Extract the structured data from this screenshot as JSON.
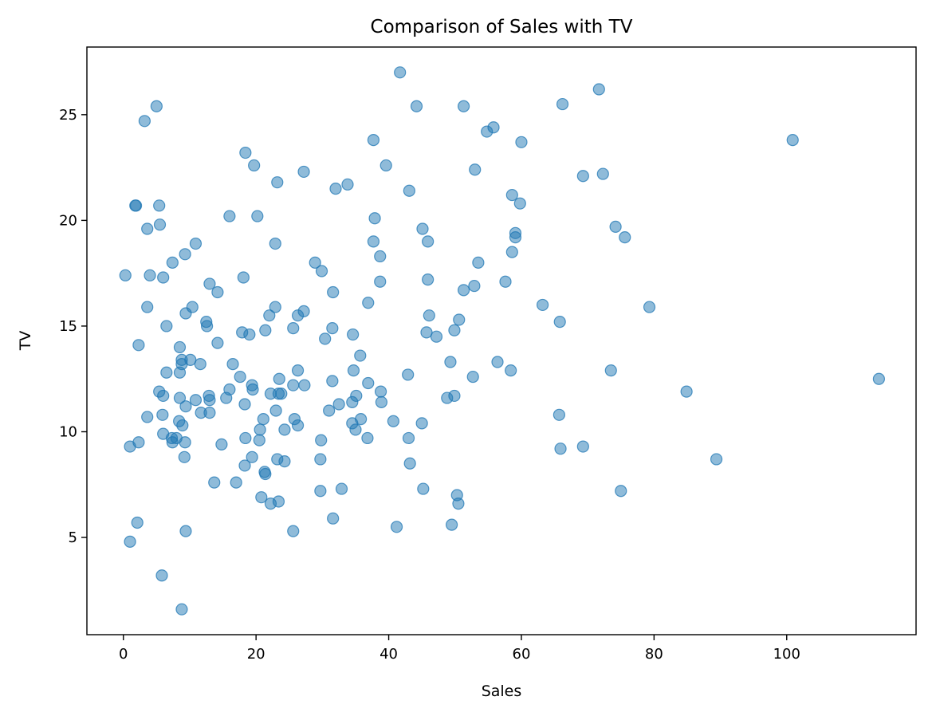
{
  "chart_data": {
    "type": "scatter",
    "title": "Comparison of Sales with TV",
    "xlabel": "Sales",
    "ylabel": "TV",
    "xlim": [
      -5.5,
      119.5
    ],
    "ylim": [
      0.4,
      28.2
    ],
    "xticks": [
      0,
      20,
      40,
      60,
      80,
      100
    ],
    "xtick_labels": [
      "0",
      "20",
      "40",
      "60",
      "80",
      "100"
    ],
    "yticks": [
      5,
      10,
      15,
      20,
      25
    ],
    "ytick_labels": [
      "5",
      "10",
      "15",
      "20",
      "25"
    ],
    "grid": false,
    "marker_color": "#1f77b4",
    "marker_alpha": 0.5,
    "points": [
      [
        41.7,
        27.0
      ],
      [
        71.7,
        26.2
      ],
      [
        5.0,
        25.4
      ],
      [
        44.2,
        25.4
      ],
      [
        51.3,
        25.4
      ],
      [
        66.2,
        25.5
      ],
      [
        3.2,
        24.7
      ],
      [
        55.8,
        24.4
      ],
      [
        54.8,
        24.2
      ],
      [
        60.0,
        23.7
      ],
      [
        37.7,
        23.8
      ],
      [
        100.9,
        23.8
      ],
      [
        18.4,
        23.2
      ],
      [
        19.7,
        22.6
      ],
      [
        39.6,
        22.6
      ],
      [
        53.0,
        22.4
      ],
      [
        27.2,
        22.3
      ],
      [
        69.3,
        22.1
      ],
      [
        72.3,
        22.2
      ],
      [
        23.2,
        21.8
      ],
      [
        32.0,
        21.5
      ],
      [
        33.8,
        21.7
      ],
      [
        43.1,
        21.4
      ],
      [
        58.6,
        21.2
      ],
      [
        1.8,
        20.7
      ],
      [
        1.9,
        20.7
      ],
      [
        5.4,
        20.7
      ],
      [
        59.8,
        20.8
      ],
      [
        16.0,
        20.2
      ],
      [
        20.2,
        20.2
      ],
      [
        37.9,
        20.1
      ],
      [
        5.5,
        19.8
      ],
      [
        3.6,
        19.6
      ],
      [
        45.1,
        19.6
      ],
      [
        74.2,
        19.7
      ],
      [
        59.1,
        19.4
      ],
      [
        59.1,
        19.2
      ],
      [
        75.6,
        19.2
      ],
      [
        10.9,
        18.9
      ],
      [
        22.9,
        18.9
      ],
      [
        37.7,
        19.0
      ],
      [
        45.9,
        19.0
      ],
      [
        9.3,
        18.4
      ],
      [
        38.7,
        18.3
      ],
      [
        58.6,
        18.5
      ],
      [
        7.4,
        18.0
      ],
      [
        28.9,
        18.0
      ],
      [
        53.5,
        18.0
      ],
      [
        29.9,
        17.6
      ],
      [
        0.3,
        17.4
      ],
      [
        4.0,
        17.4
      ],
      [
        6.0,
        17.3
      ],
      [
        18.1,
        17.3
      ],
      [
        38.7,
        17.1
      ],
      [
        45.9,
        17.2
      ],
      [
        57.6,
        17.1
      ],
      [
        13.0,
        17.0
      ],
      [
        52.9,
        16.9
      ],
      [
        51.3,
        16.7
      ],
      [
        14.2,
        16.6
      ],
      [
        31.6,
        16.6
      ],
      [
        36.9,
        16.1
      ],
      [
        63.2,
        16.0
      ],
      [
        3.6,
        15.9
      ],
      [
        10.4,
        15.9
      ],
      [
        22.9,
        15.9
      ],
      [
        79.3,
        15.9
      ],
      [
        9.4,
        15.6
      ],
      [
        27.2,
        15.7
      ],
      [
        22.0,
        15.5
      ],
      [
        26.3,
        15.5
      ],
      [
        46.1,
        15.5
      ],
      [
        50.6,
        15.3
      ],
      [
        65.8,
        15.2
      ],
      [
        12.5,
        15.2
      ],
      [
        6.5,
        15.0
      ],
      [
        12.6,
        15.0
      ],
      [
        25.6,
        14.9
      ],
      [
        31.5,
        14.9
      ],
      [
        17.9,
        14.7
      ],
      [
        21.4,
        14.8
      ],
      [
        45.7,
        14.7
      ],
      [
        49.9,
        14.8
      ],
      [
        19.0,
        14.6
      ],
      [
        34.6,
        14.6
      ],
      [
        47.2,
        14.5
      ],
      [
        30.4,
        14.4
      ],
      [
        14.2,
        14.2
      ],
      [
        2.3,
        14.1
      ],
      [
        8.5,
        14.0
      ],
      [
        35.7,
        13.6
      ],
      [
        8.8,
        13.4
      ],
      [
        10.1,
        13.4
      ],
      [
        56.4,
        13.3
      ],
      [
        49.3,
        13.3
      ],
      [
        8.8,
        13.2
      ],
      [
        11.6,
        13.2
      ],
      [
        16.5,
        13.2
      ],
      [
        34.7,
        12.9
      ],
      [
        26.3,
        12.9
      ],
      [
        58.4,
        12.9
      ],
      [
        73.5,
        12.9
      ],
      [
        6.5,
        12.8
      ],
      [
        8.5,
        12.8
      ],
      [
        42.9,
        12.7
      ],
      [
        52.7,
        12.6
      ],
      [
        17.6,
        12.6
      ],
      [
        23.5,
        12.5
      ],
      [
        113.9,
        12.5
      ],
      [
        31.5,
        12.4
      ],
      [
        19.4,
        12.2
      ],
      [
        25.6,
        12.2
      ],
      [
        27.3,
        12.2
      ],
      [
        36.9,
        12.3
      ],
      [
        16.0,
        12.0
      ],
      [
        19.5,
        12.0
      ],
      [
        5.4,
        11.9
      ],
      [
        22.2,
        11.8
      ],
      [
        23.4,
        11.8
      ],
      [
        23.8,
        11.8
      ],
      [
        38.8,
        11.9
      ],
      [
        84.9,
        11.9
      ],
      [
        6.0,
        11.7
      ],
      [
        12.9,
        11.7
      ],
      [
        35.1,
        11.7
      ],
      [
        8.5,
        11.6
      ],
      [
        15.5,
        11.6
      ],
      [
        48.8,
        11.6
      ],
      [
        49.9,
        11.7
      ],
      [
        10.9,
        11.5
      ],
      [
        13.0,
        11.5
      ],
      [
        34.5,
        11.4
      ],
      [
        38.9,
        11.4
      ],
      [
        18.3,
        11.3
      ],
      [
        32.5,
        11.3
      ],
      [
        9.4,
        11.2
      ],
      [
        23.0,
        11.0
      ],
      [
        31.0,
        11.0
      ],
      [
        11.7,
        10.9
      ],
      [
        13.0,
        10.9
      ],
      [
        3.6,
        10.7
      ],
      [
        5.9,
        10.8
      ],
      [
        65.7,
        10.8
      ],
      [
        21.1,
        10.6
      ],
      [
        25.8,
        10.6
      ],
      [
        35.8,
        10.6
      ],
      [
        8.4,
        10.5
      ],
      [
        40.7,
        10.5
      ],
      [
        45.0,
        10.4
      ],
      [
        34.5,
        10.4
      ],
      [
        8.9,
        10.3
      ],
      [
        26.3,
        10.3
      ],
      [
        20.6,
        10.1
      ],
      [
        24.3,
        10.1
      ],
      [
        35.0,
        10.1
      ],
      [
        6.0,
        9.9
      ],
      [
        18.4,
        9.7
      ],
      [
        7.3,
        9.7
      ],
      [
        8.0,
        9.7
      ],
      [
        36.8,
        9.7
      ],
      [
        43.0,
        9.7
      ],
      [
        29.8,
        9.6
      ],
      [
        20.5,
        9.6
      ],
      [
        7.4,
        9.5
      ],
      [
        9.3,
        9.5
      ],
      [
        2.3,
        9.5
      ],
      [
        14.8,
        9.4
      ],
      [
        1.0,
        9.3
      ],
      [
        65.9,
        9.2
      ],
      [
        69.3,
        9.3
      ],
      [
        9.2,
        8.8
      ],
      [
        19.4,
        8.8
      ],
      [
        23.2,
        8.7
      ],
      [
        29.7,
        8.7
      ],
      [
        89.4,
        8.7
      ],
      [
        24.3,
        8.6
      ],
      [
        43.2,
        8.5
      ],
      [
        18.3,
        8.4
      ],
      [
        21.3,
        8.1
      ],
      [
        21.4,
        8.0
      ],
      [
        13.7,
        7.6
      ],
      [
        17.0,
        7.6
      ],
      [
        32.9,
        7.3
      ],
      [
        45.2,
        7.3
      ],
      [
        29.7,
        7.2
      ],
      [
        75.0,
        7.2
      ],
      [
        50.3,
        7.0
      ],
      [
        20.8,
        6.9
      ],
      [
        22.2,
        6.6
      ],
      [
        23.4,
        6.7
      ],
      [
        50.5,
        6.6
      ],
      [
        31.6,
        5.9
      ],
      [
        2.1,
        5.7
      ],
      [
        49.5,
        5.6
      ],
      [
        41.2,
        5.5
      ],
      [
        9.4,
        5.3
      ],
      [
        25.6,
        5.3
      ],
      [
        1.0,
        4.8
      ],
      [
        5.8,
        3.2
      ],
      [
        8.8,
        1.6
      ]
    ]
  }
}
